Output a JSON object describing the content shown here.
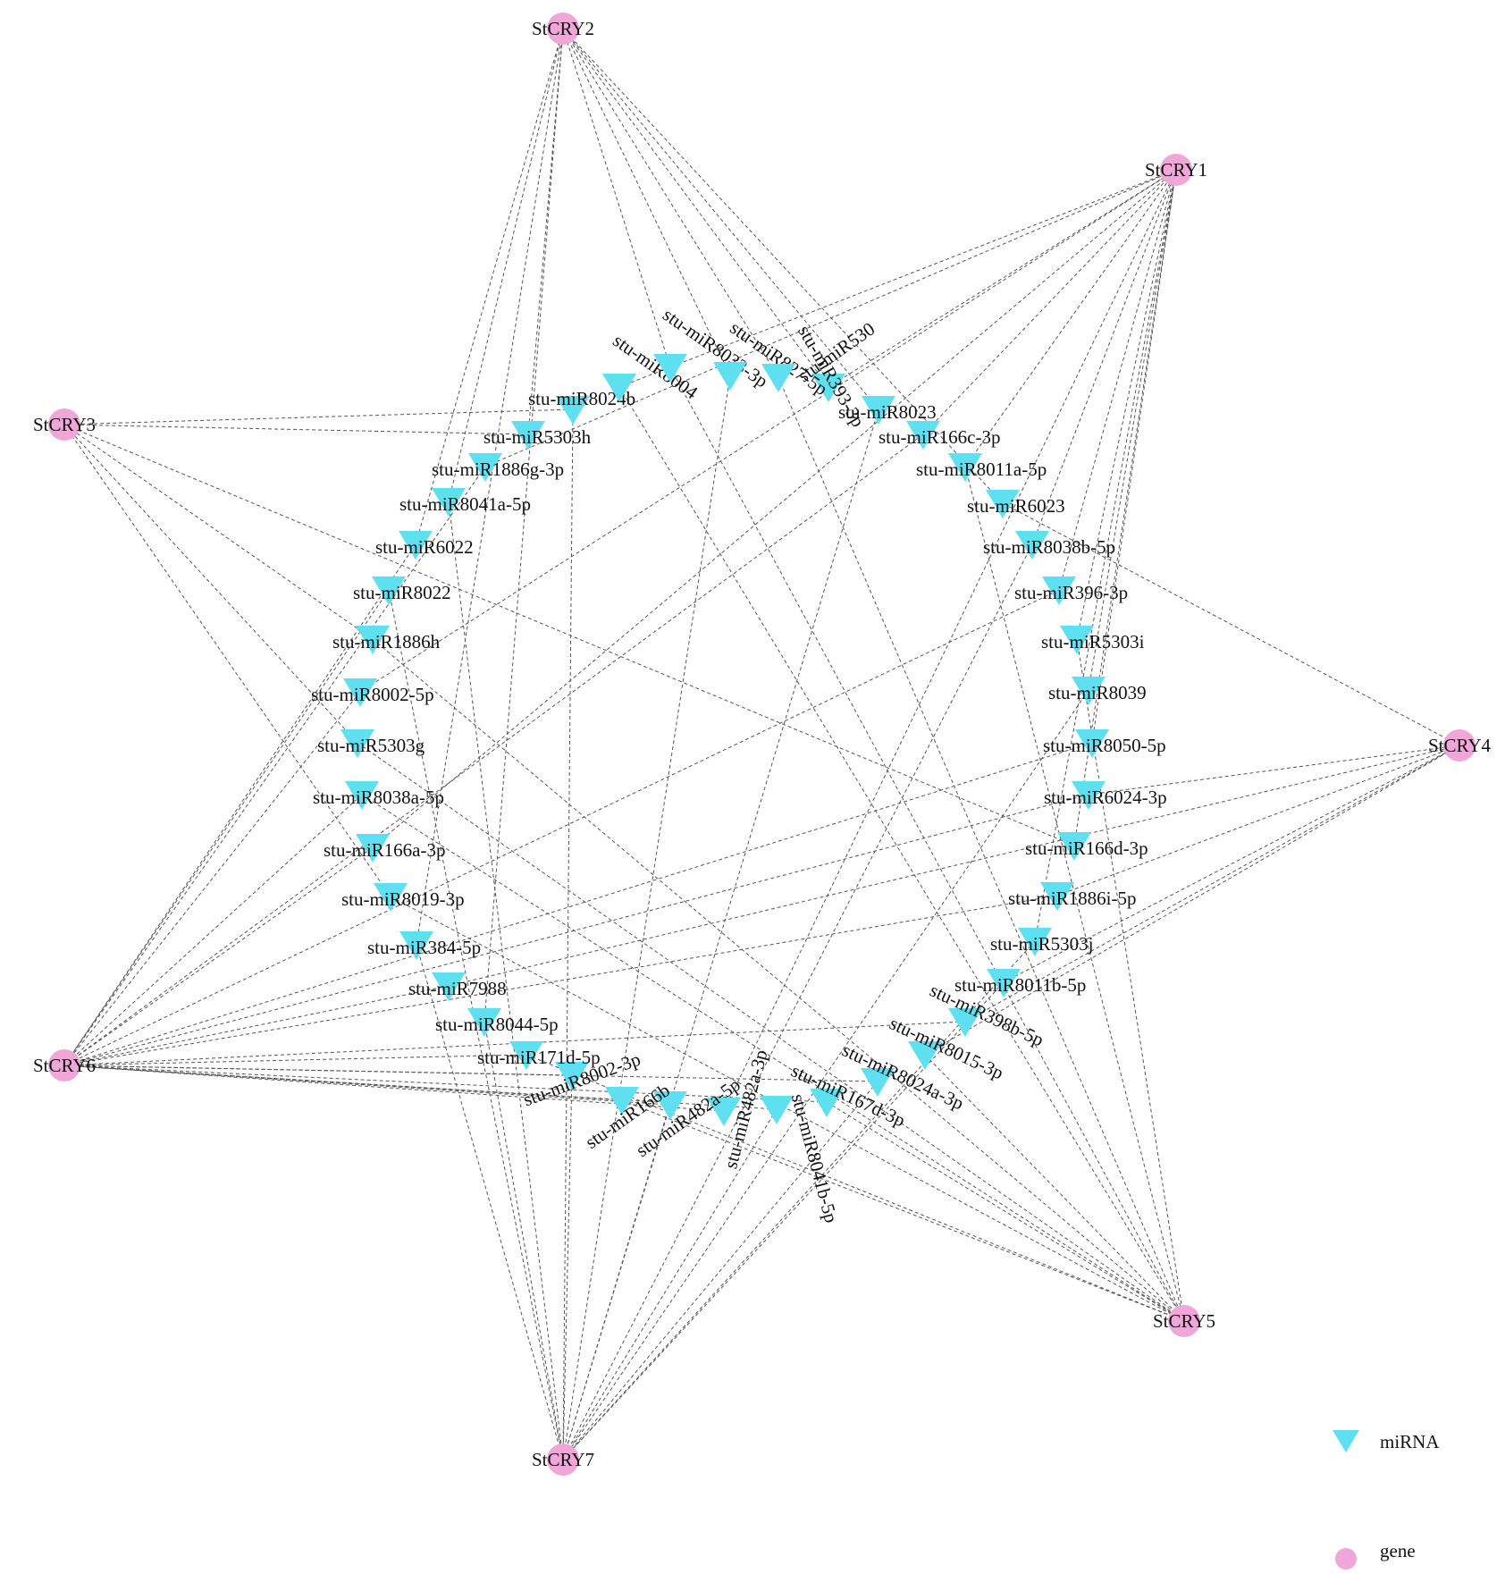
{
  "colors": {
    "gene": "#f0a6d8",
    "mirna": "#5fe0f0",
    "edge": "#555555"
  },
  "legend": {
    "mirna_label": "miRNA",
    "gene_label": "gene"
  },
  "genes": [
    {
      "id": "StCRY1",
      "label": "StCRY1"
    },
    {
      "id": "StCRY2",
      "label": "StCRY2"
    },
    {
      "id": "StCRY3",
      "label": "StCRY3"
    },
    {
      "id": "StCRY4",
      "label": "StCRY4"
    },
    {
      "id": "StCRY5",
      "label": "StCRY5"
    },
    {
      "id": "StCRY6",
      "label": "StCRY6"
    },
    {
      "id": "StCRY7",
      "label": "StCRY7"
    }
  ],
  "mirnas": [
    {
      "label": "stu-miR530"
    },
    {
      "label": "stu-miR8023"
    },
    {
      "label": "stu-miR166c-3p"
    },
    {
      "label": "stu-miR8011a-5p"
    },
    {
      "label": "stu-miR6023"
    },
    {
      "label": "stu-miR8038b-5p"
    },
    {
      "label": "stu-miR396-3p"
    },
    {
      "label": "stu-miR5303i"
    },
    {
      "label": "stu-miR8039"
    },
    {
      "label": "stu-miR8050-5p"
    },
    {
      "label": "stu-miR6024-3p"
    },
    {
      "label": "stu-miR166d-3p"
    },
    {
      "label": "stu-miR1886i-5p"
    },
    {
      "label": "stu-miR5303j"
    },
    {
      "label": "stu-miR8011b-5p"
    },
    {
      "label": "stu-miR398b-5p"
    },
    {
      "label": "stu-miR8015-3p"
    },
    {
      "label": "stu-miR8024a-3p"
    },
    {
      "label": "stu-miR167d-3p"
    },
    {
      "label": "stu-miR8041b-5p"
    },
    {
      "label": "stu-miR482a-3p"
    },
    {
      "label": "stu-miR482a-5p"
    },
    {
      "label": "stu-miR166b"
    },
    {
      "label": "stu-miR8002-3p"
    },
    {
      "label": "stu-miR171d-5p"
    },
    {
      "label": "stu-miR8044-5p"
    },
    {
      "label": "stu-miR7988"
    },
    {
      "label": "stu-miR384-5p"
    },
    {
      "label": "stu-miR8019-3p"
    },
    {
      "label": "stu-miR166a-3p"
    },
    {
      "label": "stu-miR8038a-5p"
    },
    {
      "label": "stu-miR5303g"
    },
    {
      "label": "stu-miR8002-5p"
    },
    {
      "label": "stu-miR1886h"
    },
    {
      "label": "stu-miR8022"
    },
    {
      "label": "stu-miR6022"
    },
    {
      "label": "stu-miR8041a-5p"
    },
    {
      "label": "stu-miR1886g-3p"
    },
    {
      "label": "stu-miR5303h"
    },
    {
      "label": "stu-miR8024b"
    },
    {
      "label": "stu-miR8004"
    },
    {
      "label": "stu-miR8033-3p"
    },
    {
      "label": "stu-miR827-5p"
    },
    {
      "label": "stu-miR393-3p"
    }
  ]
}
